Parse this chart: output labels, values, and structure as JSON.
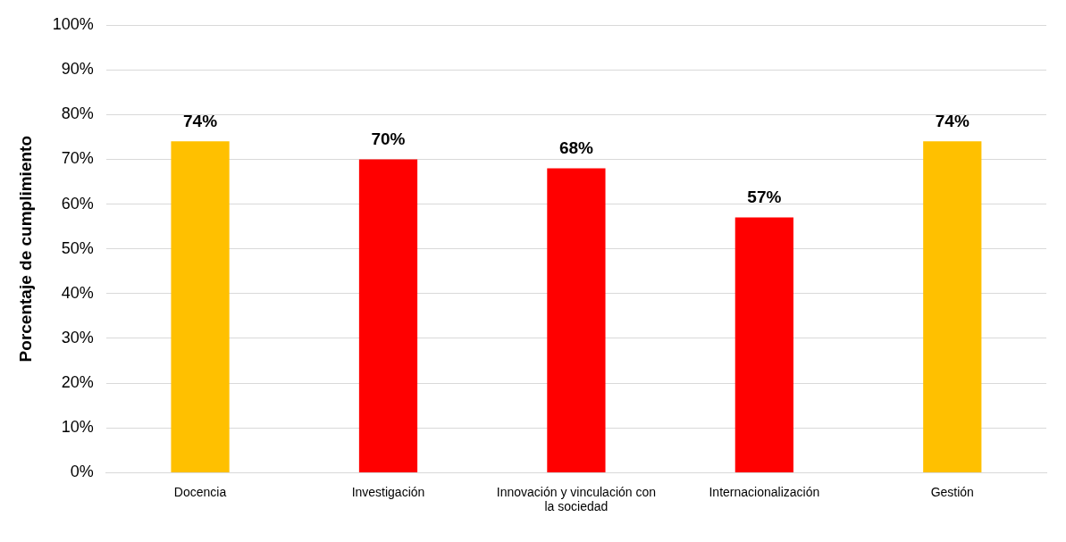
{
  "chart_data": {
    "type": "bar",
    "ylabel": "Porcentaje de cumplimiento",
    "categories": [
      "Docencia",
      "Investigación",
      "Innovación y vinculación con la sociedad",
      "Internacionalización",
      "Gestión"
    ],
    "values": [
      74,
      70,
      68,
      57,
      74
    ],
    "colors": [
      "#ffc000",
      "#ff0000",
      "#ff0000",
      "#ff0000",
      "#ffc000"
    ],
    "value_labels": [
      "74%",
      "70%",
      "68%",
      "57%",
      "74%"
    ],
    "ylim": [
      0,
      100
    ],
    "yticks": [
      {
        "value": 0,
        "label": "0%"
      },
      {
        "value": 10,
        "label": "10%"
      },
      {
        "value": 20,
        "label": "20%"
      },
      {
        "value": 30,
        "label": "30%"
      },
      {
        "value": 40,
        "label": "40%"
      },
      {
        "value": 50,
        "label": "50%"
      },
      {
        "value": 60,
        "label": "60%"
      },
      {
        "value": 70,
        "label": "70%"
      },
      {
        "value": 80,
        "label": "80%"
      },
      {
        "value": 90,
        "label": "90%"
      },
      {
        "value": 100,
        "label": "100%"
      }
    ],
    "grid": "y"
  }
}
